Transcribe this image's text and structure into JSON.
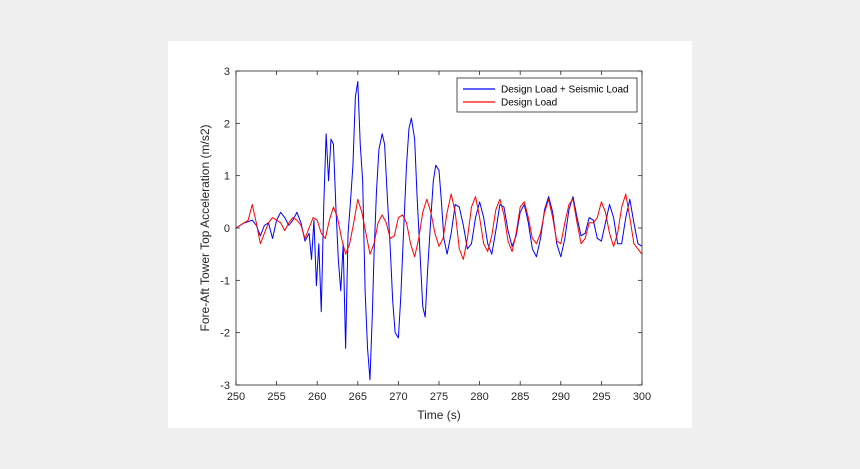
{
  "chart_data": {
    "type": "line",
    "title": "",
    "xlabel": "Time (s)",
    "ylabel": "Fore-Aft Tower Top Acceleration (m/s2)",
    "xlim": [
      250,
      300
    ],
    "ylim": [
      -3,
      3
    ],
    "xticks": [
      250,
      255,
      260,
      265,
      270,
      275,
      280,
      285,
      290,
      295,
      300
    ],
    "yticks": [
      -3,
      -2,
      -1,
      0,
      1,
      2,
      3
    ],
    "grid": false,
    "legend_position": "top-right",
    "series": [
      {
        "name": "Design Load + Seismic Load",
        "color": "#0000ff",
        "x": [
          250,
          250.5,
          251,
          251.5,
          252,
          252.5,
          253,
          253.5,
          254,
          254.5,
          255,
          255.5,
          256,
          256.5,
          257,
          257.5,
          258,
          258.5,
          259,
          259.3,
          259.6,
          259.9,
          260.2,
          260.5,
          260.8,
          261.1,
          261.4,
          261.7,
          262,
          262.3,
          262.6,
          262.9,
          263.2,
          263.5,
          263.8,
          264.1,
          264.4,
          264.7,
          265,
          265.3,
          265.6,
          265.9,
          266.2,
          266.5,
          266.8,
          267,
          267.3,
          267.6,
          268,
          268.3,
          268.6,
          269,
          269.3,
          269.6,
          270,
          270.3,
          270.6,
          271,
          271.3,
          271.6,
          272,
          272.3,
          272.6,
          273,
          273.3,
          273.6,
          274,
          274.3,
          274.6,
          275,
          275.3,
          275.6,
          276,
          276.5,
          277,
          277.5,
          278,
          278.5,
          279,
          279.5,
          280,
          280.5,
          281,
          281.5,
          282,
          282.5,
          283,
          283.5,
          284,
          284.5,
          285,
          285.5,
          286,
          286.5,
          287,
          287.5,
          288,
          288.5,
          289,
          289.5,
          290,
          290.5,
          291,
          291.5,
          292,
          292.5,
          293,
          293.5,
          294,
          294.5,
          295,
          295.5,
          296,
          296.5,
          297,
          297.5,
          298,
          298.5,
          299,
          299.5,
          300
        ],
        "y": [
          0,
          0.05,
          0.1,
          0.12,
          0.15,
          0.05,
          -0.15,
          0.05,
          0.1,
          -0.2,
          0.15,
          0.3,
          0.2,
          0.05,
          0.15,
          0.3,
          0.1,
          -0.25,
          -0.1,
          -0.6,
          0.15,
          -1.1,
          -0.3,
          -1.6,
          0.4,
          1.8,
          0.9,
          1.7,
          1.6,
          0.4,
          -0.6,
          -1.2,
          -0.3,
          -2.3,
          -0.1,
          0.5,
          1.2,
          2.5,
          2.8,
          1.6,
          0.9,
          -1.2,
          -2.3,
          -2.9,
          -1.6,
          -0.5,
          0.7,
          1.5,
          1.8,
          1.6,
          0.7,
          -0.4,
          -1.4,
          -2,
          -2.1,
          -1.3,
          -0.2,
          1.2,
          1.9,
          2.1,
          1.7,
          0.6,
          -0.3,
          -1.5,
          -1.7,
          -0.8,
          0.2,
          0.9,
          1.2,
          1.1,
          0.5,
          -0.2,
          -0.5,
          -0.1,
          0.45,
          0.4,
          0.05,
          -0.4,
          -0.3,
          0.2,
          0.5,
          0.2,
          -0.3,
          -0.5,
          -0.05,
          0.45,
          0.4,
          -0.05,
          -0.35,
          -0.15,
          0.3,
          0.45,
          0.1,
          -0.4,
          -0.55,
          -0.2,
          0.35,
          0.6,
          0.3,
          -0.3,
          -0.55,
          -0.2,
          0.35,
          0.6,
          0.2,
          -0.15,
          -0.1,
          0.2,
          0.15,
          -0.2,
          -0.25,
          0.1,
          0.45,
          0.2,
          -0.3,
          -0.3,
          0.2,
          0.55,
          0.1,
          -0.3,
          -0.35
        ]
      },
      {
        "name": "Design Load",
        "color": "#ff0000",
        "x": [
          250,
          250.5,
          251,
          251.5,
          252,
          252.5,
          253,
          253.5,
          254,
          254.5,
          255,
          255.5,
          256,
          256.5,
          257,
          257.5,
          258,
          258.5,
          259,
          259.5,
          260,
          260.5,
          261,
          261.5,
          262,
          262.5,
          263,
          263.5,
          264,
          264.5,
          265,
          265.5,
          266,
          266.5,
          267,
          267.5,
          268,
          268.5,
          269,
          269.5,
          270,
          270.5,
          271,
          271.5,
          272,
          272.5,
          273,
          273.5,
          274,
          274.5,
          275,
          275.5,
          276,
          276.5,
          277,
          277.5,
          278,
          278.5,
          279,
          279.5,
          280,
          280.5,
          281,
          281.5,
          282,
          282.5,
          283,
          283.5,
          284,
          284.5,
          285,
          285.5,
          286,
          286.5,
          287,
          287.5,
          288,
          288.5,
          289,
          289.5,
          290,
          290.5,
          291,
          291.5,
          292,
          292.5,
          293,
          293.5,
          294,
          294.5,
          295,
          295.5,
          296,
          296.5,
          297,
          297.5,
          298,
          298.5,
          299,
          299.5,
          300
        ],
        "y": [
          0,
          0.05,
          0.1,
          0.15,
          0.45,
          0.1,
          -0.3,
          -0.1,
          0.1,
          0.2,
          0.15,
          0.1,
          -0.05,
          0.1,
          0.2,
          0.15,
          0.05,
          -0.2,
          0,
          0.2,
          0.15,
          -0.1,
          -0.2,
          0.15,
          0.4,
          0.2,
          -0.2,
          -0.5,
          -0.3,
          0.1,
          0.55,
          0.3,
          -0.1,
          -0.5,
          -0.3,
          0.1,
          0.25,
          0.1,
          -0.2,
          -0.15,
          0.2,
          0.25,
          0.1,
          -0.3,
          -0.55,
          -0.2,
          0.3,
          0.55,
          0.3,
          -0.1,
          -0.35,
          -0.2,
          0.3,
          0.65,
          0.3,
          -0.4,
          -0.6,
          -0.2,
          0.4,
          0.6,
          0.2,
          -0.3,
          -0.45,
          -0.15,
          0.35,
          0.55,
          0.25,
          -0.25,
          -0.45,
          -0.1,
          0.4,
          0.5,
          0.2,
          -0.2,
          -0.3,
          -0.1,
          0.3,
          0.55,
          0.2,
          -0.25,
          -0.3,
          0.1,
          0.45,
          0.55,
          0.1,
          -0.3,
          -0.2,
          0.1,
          0.1,
          0.2,
          0.5,
          0.3,
          -0.1,
          -0.35,
          -0.1,
          0.4,
          0.65,
          0.2,
          -0.3,
          -0.4,
          -0.5
        ]
      }
    ]
  }
}
